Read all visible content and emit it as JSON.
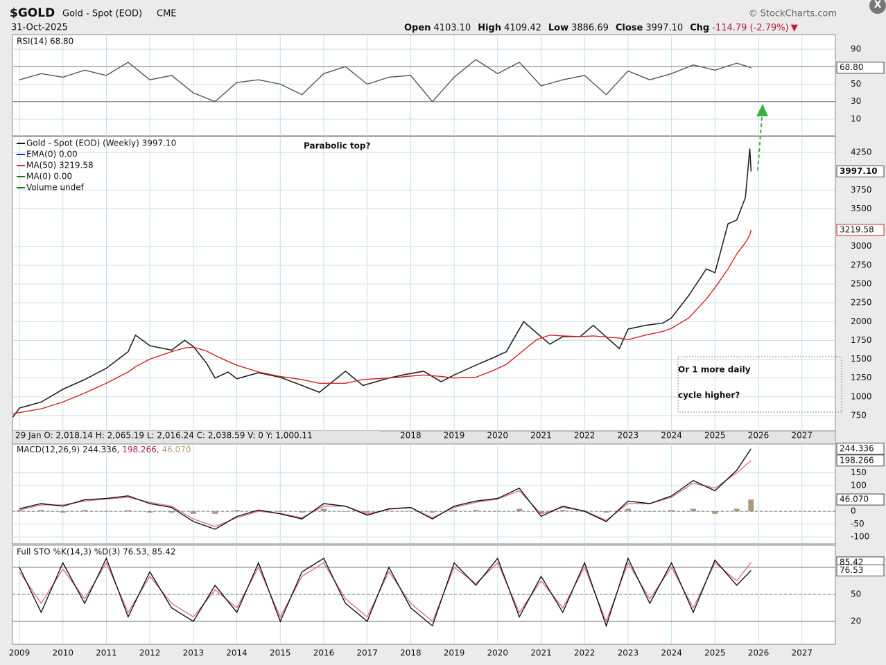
{
  "header": {
    "symbol": "$GOLD",
    "name": "Gold - Spot (EOD)",
    "exchange": "CME",
    "date": "31-Oct-2025",
    "source": "© StockCharts.com",
    "quote": [
      [
        "Open",
        "4103.10"
      ],
      [
        "High",
        "4109.42"
      ],
      [
        "Low",
        "3886.69"
      ],
      [
        "Close",
        "3997.10"
      ],
      [
        "Chg",
        "-114.79 (-2.79%)"
      ]
    ]
  },
  "chart_data": [
    {
      "type": "line",
      "title": "RSI(14) 68.80",
      "xlim": [
        2008.84,
        2027.77
      ],
      "ylim": [
        -9,
        106.6
      ],
      "yticks": [
        10,
        30,
        50,
        90
      ],
      "levels": [
        30,
        70
      ],
      "grid": true,
      "x": [
        2009,
        2009.5,
        2010,
        2010.5,
        2011,
        2011.5,
        2012,
        2012.5,
        2013,
        2013.5,
        2014,
        2014.5,
        2015,
        2015.5,
        2016,
        2016.5,
        2017,
        2017.5,
        2018,
        2018.5,
        2019,
        2019.5,
        2020,
        2020.5,
        2021,
        2021.5,
        2022,
        2022.5,
        2023,
        2023.5,
        2024,
        2024.5,
        2025,
        2025.5,
        2025.83
      ],
      "series": [
        {
          "color": "#555555",
          "last_label": "68.80",
          "values": [
            55,
            62,
            58,
            66,
            60,
            75,
            55,
            60,
            40,
            30,
            52,
            55,
            50,
            38,
            62,
            70,
            50,
            58,
            60,
            30,
            58,
            78,
            62,
            75,
            48,
            55,
            60,
            38,
            65,
            55,
            62,
            72,
            66,
            74,
            68.8
          ]
        }
      ]
    },
    {
      "type": "line",
      "xlim": [
        2008.84,
        2027.77
      ],
      "ylim": [
        547,
        4462
      ],
      "yticks": [
        750,
        1000,
        1250,
        1500,
        1750,
        2000,
        2250,
        2500,
        2750,
        3000,
        3500,
        3750,
        4250
      ],
      "grid": true,
      "xticks": [
        2018,
        2019,
        2020,
        2021,
        2022,
        2023,
        2024,
        2025,
        2026,
        2027
      ],
      "readout": "29 Jan O: 2,018.14    H: 2,065.19    L: 2,016.24    C: 2,038.59    V: 0    Y: 1,000.11",
      "legend_extra": [
        {
          "text": "EMA(0) 0.00",
          "color": "#1a2fb0"
        },
        {
          "text": "MA(0) 0.00",
          "color": "#1a7a1a"
        },
        {
          "text": "Volume undef",
          "color": "#1a7a1a"
        }
      ],
      "annotations": [
        {
          "text": "Parabolic top?",
          "color": "#4aa832"
        },
        {
          "text": "Or 1 more daily",
          "color": "#ee22cc"
        },
        {
          "text": "cycle higher?",
          "color": "#ee22cc"
        }
      ],
      "x": [
        2008.85,
        2009.0,
        2009.5,
        2010.0,
        2010.5,
        2011.0,
        2011.5,
        2011.67,
        2012.0,
        2012.5,
        2012.8,
        2013.0,
        2013.3,
        2013.5,
        2013.8,
        2014.0,
        2014.5,
        2015.0,
        2015.5,
        2015.9,
        2016.5,
        2016.9,
        2017.5,
        2017.9,
        2018.3,
        2018.7,
        2019.0,
        2019.5,
        2019.9,
        2020.2,
        2020.6,
        2020.9,
        2021.2,
        2021.5,
        2021.9,
        2022.2,
        2022.8,
        2023.0,
        2023.4,
        2023.8,
        2024.0,
        2024.4,
        2024.8,
        2025.0,
        2025.3,
        2025.5,
        2025.7,
        2025.8,
        2025.83
      ],
      "series": [
        {
          "name": "Gold - Spot (EOD) (Weekly) 3997.10",
          "color": "#222222",
          "last_label": "3997.10",
          "values": [
            730,
            850,
            930,
            1100,
            1230,
            1380,
            1600,
            1820,
            1680,
            1620,
            1750,
            1670,
            1450,
            1250,
            1330,
            1240,
            1320,
            1260,
            1150,
            1060,
            1340,
            1150,
            1250,
            1300,
            1340,
            1200,
            1290,
            1420,
            1520,
            1600,
            2000,
            1850,
            1700,
            1800,
            1800,
            1950,
            1640,
            1900,
            1950,
            1980,
            2050,
            2350,
            2700,
            2650,
            3300,
            3350,
            3650,
            4300,
            3997.1
          ]
        },
        {
          "name": "MA(50) 3219.58",
          "color": "#d62020",
          "last_label": "3219.58",
          "values": [
            770,
            790,
            840,
            930,
            1050,
            1180,
            1330,
            1400,
            1500,
            1600,
            1650,
            1660,
            1610,
            1550,
            1470,
            1420,
            1330,
            1270,
            1230,
            1180,
            1180,
            1230,
            1250,
            1270,
            1290,
            1270,
            1250,
            1260,
            1350,
            1430,
            1620,
            1760,
            1820,
            1810,
            1800,
            1810,
            1780,
            1760,
            1820,
            1870,
            1910,
            2050,
            2300,
            2450,
            2700,
            2900,
            3050,
            3150,
            3219.58
          ]
        }
      ]
    },
    {
      "type": "line",
      "title_parts": [
        {
          "text": "MACD(12,26,9) 244.336,",
          "color": "#222222"
        },
        {
          "text": " 198.266,",
          "color": "#b02040"
        },
        {
          "text": " 46.070",
          "color": "#b8a070"
        }
      ],
      "xlim": [
        2008.84,
        2027.77
      ],
      "ylim": [
        -126.8,
        262.6
      ],
      "yticks": [
        -100,
        -50,
        0,
        100,
        150
      ],
      "grid": true,
      "x": [
        2009,
        2009.5,
        2010,
        2010.5,
        2011,
        2011.5,
        2012,
        2012.5,
        2013,
        2013.5,
        2014,
        2014.5,
        2015,
        2015.5,
        2016,
        2016.5,
        2017,
        2017.5,
        2018,
        2018.5,
        2019,
        2019.5,
        2020,
        2020.5,
        2021,
        2021.5,
        2022,
        2022.5,
        2023,
        2023.5,
        2024,
        2024.5,
        2025,
        2025.5,
        2025.83
      ],
      "series": [
        {
          "type": "bar",
          "color": "#9c8a68",
          "last_label": "46.070",
          "values": [
            5,
            5,
            -5,
            5,
            2,
            5,
            -5,
            -5,
            -10,
            -10,
            5,
            5,
            -2,
            -5,
            10,
            0,
            -5,
            2,
            1,
            -5,
            5,
            5,
            2,
            10,
            -10,
            5,
            -2,
            -5,
            10,
            0,
            5,
            10,
            -10,
            10,
            46.07
          ]
        },
        {
          "color": "#e07090",
          "last_label": "198.266",
          "values": [
            5,
            25,
            25,
            40,
            48,
            55,
            35,
            20,
            -30,
            -60,
            -25,
            0,
            -8,
            -25,
            20,
            20,
            -10,
            8,
            14,
            -25,
            15,
            35,
            48,
            80,
            -10,
            15,
            2,
            -35,
            30,
            30,
            55,
            110,
            90,
            150,
            198.266
          ]
        },
        {
          "color": "#111111",
          "last_label": "244.336",
          "values": [
            10,
            30,
            20,
            45,
            50,
            60,
            30,
            15,
            -40,
            -70,
            -20,
            5,
            -10,
            -30,
            30,
            20,
            -15,
            10,
            15,
            -30,
            20,
            40,
            50,
            90,
            -20,
            20,
            0,
            -40,
            40,
            30,
            60,
            120,
            80,
            160,
            244.336
          ]
        }
      ]
    },
    {
      "type": "line",
      "title": "Full STO %K(14,3) %D(3) 76.53, 85.42",
      "xlim": [
        2008.84,
        2027.77
      ],
      "ylim": [
        -5.4,
        104.6
      ],
      "yticks": [
        20,
        50
      ],
      "levels": [
        20,
        80
      ],
      "grid": true,
      "xticks": [
        2009,
        2010,
        2011,
        2012,
        2013,
        2014,
        2015,
        2016,
        2017,
        2018,
        2019,
        2020,
        2021,
        2022,
        2023,
        2024,
        2025,
        2026,
        2027
      ],
      "x": [
        2009,
        2009.5,
        2010,
        2010.5,
        2011,
        2011.5,
        2012,
        2012.5,
        2013,
        2013.5,
        2014,
        2014.5,
        2015,
        2015.5,
        2016,
        2016.5,
        2017,
        2017.5,
        2018,
        2018.5,
        2019,
        2019.5,
        2020,
        2020.5,
        2021,
        2021.5,
        2022,
        2022.5,
        2023,
        2023.5,
        2024,
        2024.5,
        2025,
        2025.5,
        2025.83
      ],
      "series": [
        {
          "color": "#e07090",
          "last_label": "85.42",
          "values": [
            75,
            40,
            78,
            45,
            85,
            30,
            70,
            40,
            25,
            55,
            35,
            80,
            25,
            70,
            85,
            45,
            25,
            75,
            40,
            20,
            80,
            62,
            85,
            30,
            65,
            35,
            80,
            20,
            85,
            45,
            80,
            35,
            85,
            65,
            85.42
          ]
        },
        {
          "color": "#111111",
          "last_label": "76.53",
          "values": [
            80,
            30,
            85,
            40,
            90,
            25,
            75,
            35,
            20,
            60,
            30,
            85,
            20,
            75,
            90,
            40,
            20,
            80,
            35,
            15,
            85,
            60,
            90,
            25,
            70,
            30,
            85,
            15,
            90,
            40,
            85,
            30,
            88,
            60,
            76.53
          ]
        }
      ]
    }
  ]
}
